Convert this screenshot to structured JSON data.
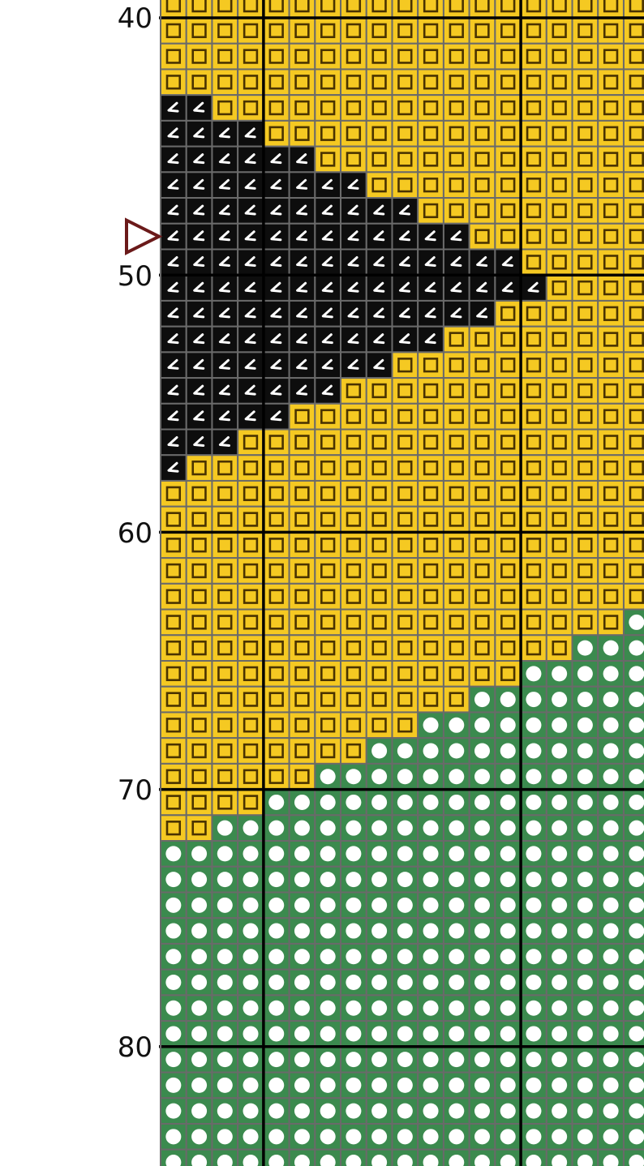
{
  "pattern": {
    "first_row_number": 39,
    "columns_visible": 19,
    "row_labels": [
      "40",
      "50",
      "60",
      "70",
      "80"
    ],
    "center_marker_row": 48,
    "colors": {
      "Y": "#f5c922",
      "B": "#0d0d0d",
      "G": "#3b8a4e",
      "grid": "#6a6a6a",
      "major": "#000000",
      "marker": "#6b1a1a"
    },
    "symbols": {
      "Y": "square-outline",
      "B": "angle-mark",
      "G": "white-circle"
    },
    "rows": [
      [
        [
          "Y",
          19
        ]
      ],
      [
        [
          "Y",
          19
        ]
      ],
      [
        [
          "Y",
          19
        ]
      ],
      [
        [
          "Y",
          19
        ]
      ],
      [
        [
          "B",
          2
        ],
        [
          "Y",
          17
        ]
      ],
      [
        [
          "B",
          4
        ],
        [
          "Y",
          15
        ]
      ],
      [
        [
          "B",
          6
        ],
        [
          "Y",
          13
        ]
      ],
      [
        [
          "B",
          8
        ],
        [
          "Y",
          11
        ]
      ],
      [
        [
          "B",
          10
        ],
        [
          "Y",
          9
        ]
      ],
      [
        [
          "B",
          12
        ],
        [
          "Y",
          7
        ]
      ],
      [
        [
          "B",
          14
        ],
        [
          "Y",
          5
        ]
      ],
      [
        [
          "B",
          15
        ],
        [
          "Y",
          4
        ]
      ],
      [
        [
          "B",
          13
        ],
        [
          "Y",
          6
        ]
      ],
      [
        [
          "B",
          11
        ],
        [
          "Y",
          8
        ]
      ],
      [
        [
          "B",
          9
        ],
        [
          "Y",
          10
        ]
      ],
      [
        [
          "B",
          7
        ],
        [
          "Y",
          12
        ]
      ],
      [
        [
          "B",
          5
        ],
        [
          "Y",
          14
        ]
      ],
      [
        [
          "B",
          3
        ],
        [
          "Y",
          16
        ]
      ],
      [
        [
          "B",
          1
        ],
        [
          "Y",
          18
        ]
      ],
      [
        [
          "Y",
          19
        ]
      ],
      [
        [
          "Y",
          19
        ]
      ],
      [
        [
          "Y",
          19
        ]
      ],
      [
        [
          "Y",
          19
        ]
      ],
      [
        [
          "Y",
          19
        ]
      ],
      [
        [
          "Y",
          18
        ],
        [
          "G",
          1
        ]
      ],
      [
        [
          "Y",
          16
        ],
        [
          "G",
          3
        ]
      ],
      [
        [
          "Y",
          14
        ],
        [
          "G",
          5
        ]
      ],
      [
        [
          "Y",
          12
        ],
        [
          "G",
          7
        ]
      ],
      [
        [
          "Y",
          10
        ],
        [
          "G",
          9
        ]
      ],
      [
        [
          "Y",
          8
        ],
        [
          "G",
          11
        ]
      ],
      [
        [
          "Y",
          6
        ],
        [
          "G",
          13
        ]
      ],
      [
        [
          "Y",
          4
        ],
        [
          "G",
          15
        ]
      ],
      [
        [
          "Y",
          2
        ],
        [
          "G",
          17
        ]
      ],
      [
        [
          "G",
          19
        ]
      ],
      [
        [
          "G",
          19
        ]
      ],
      [
        [
          "G",
          19
        ]
      ],
      [
        [
          "G",
          19
        ]
      ],
      [
        [
          "G",
          19
        ]
      ],
      [
        [
          "G",
          19
        ]
      ],
      [
        [
          "G",
          19
        ]
      ],
      [
        [
          "G",
          19
        ]
      ],
      [
        [
          "G",
          19
        ]
      ],
      [
        [
          "G",
          19
        ]
      ],
      [
        [
          "G",
          19
        ]
      ],
      [
        [
          "G",
          19
        ]
      ],
      [
        [
          "G",
          19
        ]
      ]
    ]
  }
}
